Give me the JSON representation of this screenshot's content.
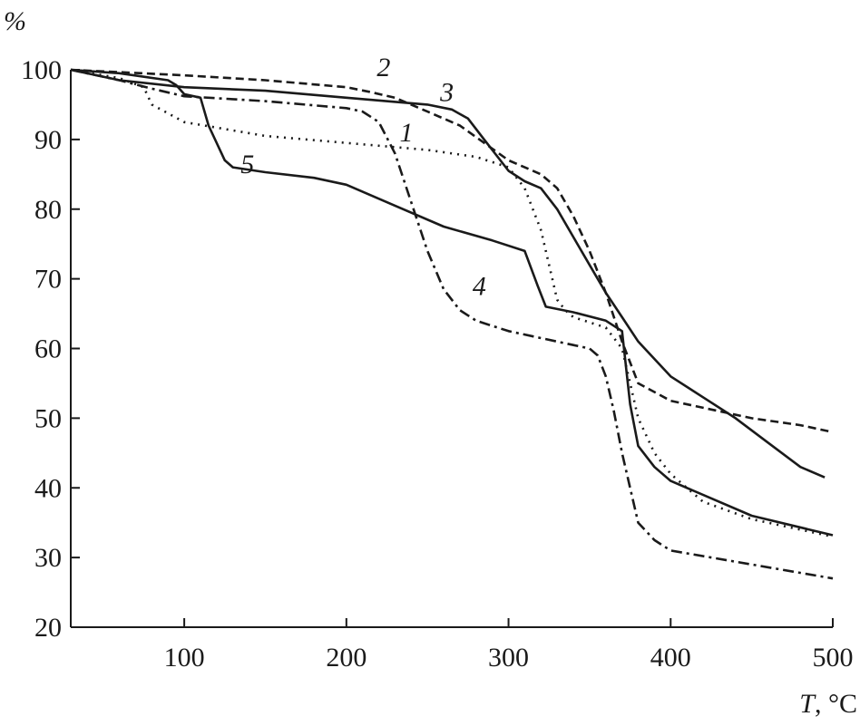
{
  "chart_data": {
    "type": "line",
    "title": "",
    "ylabel": "%",
    "xlabel_italic": "T",
    "xlabel_rest": ", °C",
    "xlim": [
      30,
      500
    ],
    "ylim": [
      20,
      100
    ],
    "xticks": [
      100,
      200,
      300,
      400,
      500
    ],
    "xtick_labels": [
      "100",
      "200",
      "300",
      "400",
      "500"
    ],
    "yticks": [
      20,
      30,
      40,
      50,
      60,
      70,
      80,
      90,
      100
    ],
    "ytick_labels": [
      "20",
      "30",
      "40",
      "50",
      "60",
      "70",
      "80",
      "90",
      "100"
    ],
    "grid": false,
    "legend": "none",
    "series": [
      {
        "label": "1",
        "dash": "dotted",
        "x": [
          30,
          60,
          75,
          80,
          100,
          150,
          200,
          250,
          280,
          300,
          310,
          320,
          330,
          335,
          340,
          360,
          370,
          380,
          390,
          400,
          420,
          450,
          470,
          500
        ],
        "y": [
          100,
          98.8,
          97.5,
          95,
          92.5,
          90.5,
          89.5,
          88.5,
          87.5,
          86,
          83,
          77,
          67,
          65.5,
          64.5,
          63,
          60,
          50,
          45,
          42,
          38,
          35.5,
          34.5,
          33
        ]
      },
      {
        "label": "2",
        "dash": "dashed",
        "x": [
          30,
          100,
          150,
          200,
          215,
          230,
          250,
          270,
          300,
          320,
          330,
          340,
          350,
          360,
          370,
          380,
          400,
          430,
          450,
          480,
          500
        ],
        "y": [
          100,
          99.2,
          98.5,
          97.5,
          96.8,
          96,
          94,
          92,
          87,
          85,
          83,
          79,
          74,
          68,
          61,
          55,
          52.5,
          51,
          50,
          49,
          48
        ]
      },
      {
        "label": "3",
        "dash": "solid",
        "x": [
          30,
          60,
          100,
          150,
          200,
          250,
          265,
          275,
          285,
          300,
          310,
          320,
          330,
          340,
          350,
          360,
          370,
          380,
          400,
          420,
          440,
          460,
          480,
          495
        ],
        "y": [
          100,
          98.5,
          97.5,
          97,
          96,
          95,
          94.3,
          93,
          90,
          85.5,
          84,
          83,
          80,
          76,
          72,
          68,
          64.5,
          61,
          56,
          53,
          50,
          46.5,
          43,
          41.5
        ]
      },
      {
        "label": "4",
        "dash": "dashdot",
        "x": [
          30,
          60,
          80,
          100,
          150,
          200,
          210,
          220,
          230,
          240,
          250,
          260,
          270,
          280,
          300,
          340,
          350,
          355,
          360,
          365,
          370,
          375,
          380,
          390,
          400,
          450,
          500
        ],
        "y": [
          100,
          98.5,
          97.3,
          96.2,
          95.5,
          94.5,
          94,
          92.5,
          88,
          81,
          74,
          68.5,
          65.5,
          64,
          62.5,
          60.5,
          60,
          59,
          56,
          51,
          45,
          40,
          35,
          32.5,
          31,
          29,
          27
        ]
      },
      {
        "label": "5",
        "dash": "solid",
        "x": [
          30,
          60,
          90,
          95,
          100,
          110,
          115,
          125,
          130,
          150,
          180,
          200,
          230,
          260,
          290,
          310,
          318,
          323,
          340,
          360,
          370,
          375,
          380,
          390,
          400,
          450,
          500
        ],
        "y": [
          100,
          99.5,
          98.5,
          97.8,
          96.5,
          96,
          92,
          87,
          86,
          85.3,
          84.5,
          83.5,
          80.5,
          77.5,
          75.5,
          74,
          69,
          66,
          65.2,
          64,
          62.5,
          52,
          46,
          43,
          41,
          36,
          33.2
        ]
      }
    ],
    "curve_labels": [
      {
        "text": "1",
        "x": 237,
        "y": 91
      },
      {
        "text": "2",
        "x": 223,
        "y": 100.4
      },
      {
        "text": "3",
        "x": 262,
        "y": 96.8
      },
      {
        "text": "4",
        "x": 282,
        "y": 69
      },
      {
        "text": "5",
        "x": 139,
        "y": 86.5
      }
    ]
  }
}
